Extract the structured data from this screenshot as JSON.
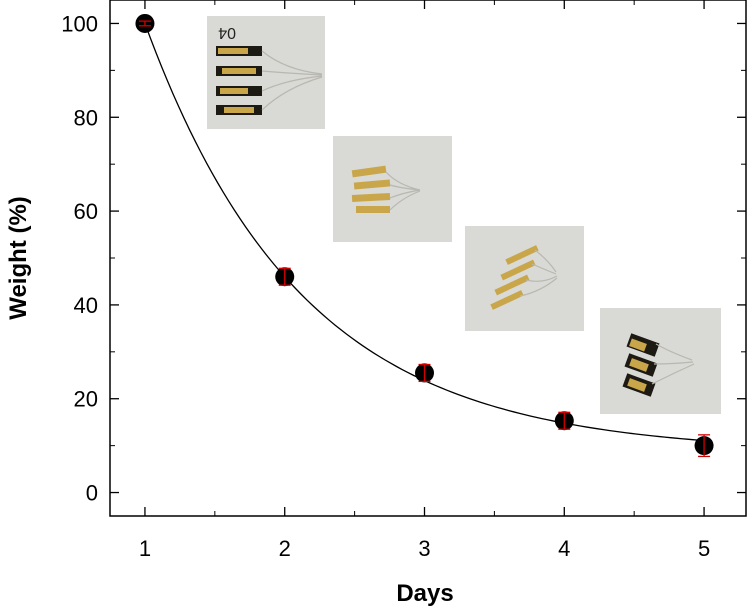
{
  "chart_data": {
    "type": "scatter",
    "xlabel": "Days",
    "ylabel": "Weight (%)",
    "xlim": [
      0.75,
      5.3
    ],
    "ylim": [
      -5,
      105
    ],
    "xticks": [
      1,
      2,
      3,
      4,
      5
    ],
    "yticks": [
      0,
      20,
      40,
      60,
      80,
      100
    ],
    "grid": false,
    "series": [
      {
        "x": [
          1,
          2,
          3,
          4,
          5
        ],
        "y": [
          100,
          46,
          25.5,
          15.3,
          10
        ],
        "error": [
          0.5,
          1.8,
          1.8,
          1.8,
          2.3
        ],
        "marker_color": "#000000",
        "error_color": "#d40000"
      }
    ],
    "fit_curve": {
      "type": "exponential-decay",
      "color": "#000000"
    },
    "inset_photos": [
      {
        "day": 1,
        "handwritten_label": "04"
      },
      {
        "day": 2
      },
      {
        "day": 3
      },
      {
        "day": 4
      }
    ]
  }
}
